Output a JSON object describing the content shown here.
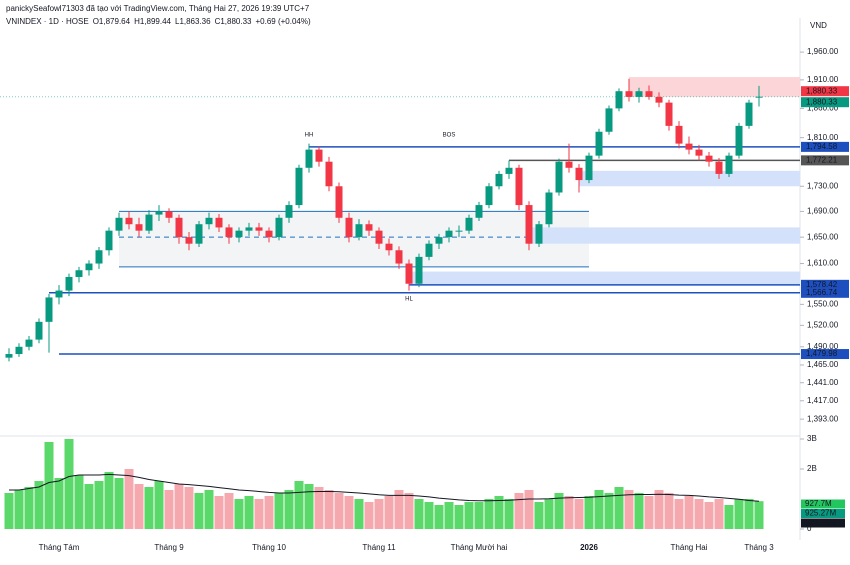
{
  "header": {
    "credit": "panickySeafowl71303 đã tạo với TradingView.com, Tháng Hai 27, 2026 19:39 UTC+7"
  },
  "chart_data": {
    "type": "candlestick",
    "currency": "VND",
    "legend": {
      "symbol": "VNINDEX · 1D · HOSE",
      "o": "O",
      "open": "1,879.64",
      "h": "H",
      "high": "1,899.44",
      "l": "L",
      "low": "1,863.36",
      "c": "C",
      "close": "1,880.33",
      "change": "+0.69 (+0.04%)"
    },
    "log_scale": true,
    "ylim": [
      1379,
      1997
    ],
    "yticks": [
      {
        "value": 1960,
        "label": "1,960.00"
      },
      {
        "value": 1910,
        "label": "1,910.00"
      },
      {
        "value": 1860,
        "label": "1,860.00"
      },
      {
        "value": 1810,
        "label": "1,810.00"
      },
      {
        "value": 1730,
        "label": "1,730.00"
      },
      {
        "value": 1690,
        "label": "1,690.00"
      },
      {
        "value": 1650,
        "label": "1,650.00"
      },
      {
        "value": 1610,
        "label": "1,610.00"
      },
      {
        "value": 1550,
        "label": "1,550.00"
      },
      {
        "value": 1520,
        "label": "1,520.00"
      },
      {
        "value": 1490,
        "label": "1,490.00"
      },
      {
        "value": 1465,
        "label": "1,465.00"
      },
      {
        "value": 1441,
        "label": "1,441.00"
      },
      {
        "value": 1417,
        "label": "1,417.00"
      },
      {
        "value": 1393,
        "label": "1,393.00"
      }
    ],
    "up_color": "#089981",
    "down_color": "#f23645",
    "candles": [
      [
        1475,
        1488,
        1470,
        1480
      ],
      [
        1480,
        1495,
        1476,
        1490
      ],
      [
        1490,
        1505,
        1485,
        1500
      ],
      [
        1500,
        1530,
        1495,
        1525
      ],
      [
        1525,
        1565,
        1482,
        1560
      ],
      [
        1560,
        1578,
        1550,
        1570
      ],
      [
        1570,
        1595,
        1562,
        1590
      ],
      [
        1590,
        1605,
        1582,
        1600
      ],
      [
        1600,
        1615,
        1592,
        1610
      ],
      [
        1610,
        1635,
        1602,
        1630
      ],
      [
        1630,
        1665,
        1622,
        1660
      ],
      [
        1660,
        1688,
        1652,
        1680
      ],
      [
        1680,
        1690,
        1662,
        1670
      ],
      [
        1670,
        1680,
        1650,
        1660
      ],
      [
        1660,
        1692,
        1655,
        1685
      ],
      [
        1685,
        1700,
        1675,
        1690
      ],
      [
        1690,
        1695,
        1672,
        1680
      ],
      [
        1680,
        1685,
        1640,
        1650
      ],
      [
        1650,
        1658,
        1630,
        1640
      ],
      [
        1640,
        1675,
        1635,
        1670
      ],
      [
        1670,
        1688,
        1662,
        1680
      ],
      [
        1680,
        1686,
        1658,
        1665
      ],
      [
        1665,
        1670,
        1640,
        1650
      ],
      [
        1650,
        1665,
        1642,
        1660
      ],
      [
        1660,
        1672,
        1652,
        1665
      ],
      [
        1665,
        1672,
        1652,
        1660
      ],
      [
        1660,
        1665,
        1642,
        1650
      ],
      [
        1650,
        1685,
        1645,
        1680
      ],
      [
        1680,
        1706,
        1672,
        1700
      ],
      [
        1700,
        1765,
        1695,
        1760
      ],
      [
        1760,
        1800,
        1752,
        1790
      ],
      [
        1790,
        1795,
        1762,
        1770
      ],
      [
        1770,
        1778,
        1722,
        1730
      ],
      [
        1730,
        1736,
        1672,
        1680
      ],
      [
        1680,
        1688,
        1642,
        1650
      ],
      [
        1650,
        1678,
        1645,
        1670
      ],
      [
        1670,
        1676,
        1652,
        1660
      ],
      [
        1660,
        1665,
        1632,
        1640
      ],
      [
        1640,
        1648,
        1622,
        1630
      ],
      [
        1630,
        1636,
        1602,
        1610
      ],
      [
        1610,
        1616,
        1570,
        1580
      ],
      [
        1580,
        1625,
        1575,
        1620
      ],
      [
        1620,
        1645,
        1615,
        1640
      ],
      [
        1640,
        1655,
        1632,
        1650
      ],
      [
        1650,
        1665,
        1642,
        1660
      ],
      [
        1660,
        1668,
        1650,
        1660
      ],
      [
        1660,
        1685,
        1655,
        1680
      ],
      [
        1680,
        1705,
        1675,
        1700
      ],
      [
        1700,
        1735,
        1695,
        1730
      ],
      [
        1730,
        1755,
        1725,
        1750
      ],
      [
        1750,
        1772,
        1742,
        1760
      ],
      [
        1760,
        1765,
        1692,
        1700
      ],
      [
        1700,
        1706,
        1630,
        1640
      ],
      [
        1640,
        1675,
        1635,
        1670
      ],
      [
        1670,
        1725,
        1665,
        1720
      ],
      [
        1720,
        1775,
        1715,
        1770
      ],
      [
        1770,
        1800,
        1752,
        1760
      ],
      [
        1760,
        1766,
        1720,
        1740
      ],
      [
        1740,
        1785,
        1735,
        1780
      ],
      [
        1780,
        1825,
        1775,
        1820
      ],
      [
        1820,
        1865,
        1815,
        1860
      ],
      [
        1860,
        1895,
        1855,
        1890
      ],
      [
        1890,
        1912,
        1872,
        1880
      ],
      [
        1880,
        1896,
        1870,
        1890
      ],
      [
        1890,
        1900,
        1875,
        1880
      ],
      [
        1880,
        1888,
        1862,
        1870
      ],
      [
        1870,
        1875,
        1822,
        1830
      ],
      [
        1830,
        1838,
        1792,
        1800
      ],
      [
        1800,
        1812,
        1782,
        1790
      ],
      [
        1790,
        1798,
        1772,
        1780
      ],
      [
        1780,
        1786,
        1762,
        1770
      ],
      [
        1770,
        1776,
        1742,
        1750
      ],
      [
        1750,
        1785,
        1745,
        1780
      ],
      [
        1780,
        1835,
        1775,
        1830
      ],
      [
        1830,
        1875,
        1825,
        1870
      ],
      [
        1879.64,
        1899.44,
        1863.36,
        1880.33
      ]
    ],
    "volume_ylim": [
      0,
      3000000000.0
    ],
    "volume_ticks": [
      {
        "value": 3000000000.0,
        "label": "3B"
      },
      {
        "value": 2000000000.0,
        "label": "2B"
      },
      {
        "value": 0,
        "label": "0"
      }
    ],
    "volumes": [
      1200000000.0,
      1300000000.0,
      1400000000.0,
      1600000000.0,
      2900000000.0,
      1700000000.0,
      3000000000.0,
      1800000000.0,
      1500000000.0,
      1600000000.0,
      1900000000.0,
      1700000000.0,
      2000000000.0,
      1500000000.0,
      1400000000.0,
      1600000000.0,
      1300000000.0,
      1500000000.0,
      1400000000.0,
      1200000000.0,
      1300000000.0,
      1100000000.0,
      1200000000.0,
      1000000000.0,
      1100000000.0,
      1000000000.0,
      1100000000.0,
      1200000000.0,
      1300000000.0,
      1600000000.0,
      1500000000.0,
      1400000000.0,
      1300000000.0,
      1200000000.0,
      1100000000.0,
      1000000000.0,
      900000000.0,
      1000000000.0,
      1100000000.0,
      1300000000.0,
      1200000000.0,
      1000000000.0,
      900000000.0,
      800000000.0,
      900000000.0,
      800000000.0,
      900000000.0,
      900000000.0,
      1000000000.0,
      1100000000.0,
      1000000000.0,
      1200000000.0,
      1300000000.0,
      900000000.0,
      1000000000.0,
      1200000000.0,
      1100000000.0,
      1000000000.0,
      1100000000.0,
      1300000000.0,
      1200000000.0,
      1400000000.0,
      1300000000.0,
      1200000000.0,
      1100000000.0,
      1300000000.0,
      1200000000.0,
      1000000000.0,
      1100000000.0,
      1000000000.0,
      900000000.0,
      1000000000.0,
      800000000.0,
      1000000000.0,
      1000000000.0,
      927700000
    ],
    "volume_ma": [
      1300000000.0,
      1300000000.0,
      1350000000.0,
      1400000000.0,
      1550000000.0,
      1600000000.0,
      1750000000.0,
      1800000000.0,
      1800000000.0,
      1800000000.0,
      1820000000.0,
      1800000000.0,
      1780000000.0,
      1720000000.0,
      1650000000.0,
      1600000000.0,
      1550000000.0,
      1500000000.0,
      1480000000.0,
      1450000000.0,
      1420000000.0,
      1380000000.0,
      1340000000.0,
      1300000000.0,
      1280000000.0,
      1250000000.0,
      1220000000.0,
      1200000000.0,
      1200000000.0,
      1220000000.0,
      1240000000.0,
      1250000000.0,
      1250000000.0,
      1240000000.0,
      1220000000.0,
      1200000000.0,
      1170000000.0,
      1140000000.0,
      1120000000.0,
      1120000000.0,
      1120000000.0,
      1100000000.0,
      1070000000.0,
      1030000000.0,
      1000000000.0,
      970000000.0,
      950000000.0,
      940000000.0,
      940000000.0,
      950000000.0,
      960000000.0,
      980000000.0,
      1000000000.0,
      1000000000.0,
      1010000000.0,
      1030000000.0,
      1040000000.0,
      1050000000.0,
      1060000000.0,
      1080000000.0,
      1100000000.0,
      1120000000.0,
      1140000000.0,
      1150000000.0,
      1150000000.0,
      1160000000.0,
      1150000000.0,
      1130000000.0,
      1120000000.0,
      1100000000.0,
      1070000000.0,
      1050000000.0,
      1020000000.0,
      990000000.0,
      950000000.0,
      925270000
    ],
    "volume_labels": [
      {
        "value": 927700000,
        "label": "927.7M",
        "color": "#22c55e"
      },
      {
        "value": 925270000,
        "label": "925.27M",
        "color": "#089981"
      },
      {
        "value": 903780000,
        "label": "903.78M",
        "color": "#131722"
      }
    ],
    "zones": [
      {
        "lo": 1880,
        "hi": 1915,
        "from": 62,
        "color": "#fbd5d8"
      },
      {
        "lo": 1730,
        "hi": 1755,
        "from": 57,
        "color": "#d3e1fb"
      },
      {
        "lo": 1640,
        "hi": 1665,
        "from": 52,
        "color": "#d3e1fb"
      },
      {
        "lo": 1578.42,
        "hi": 1598,
        "from": 40,
        "color": "#d3e1fb"
      }
    ],
    "range": {
      "lo": 1605,
      "hi": 1690,
      "mid": 1650,
      "from": 11,
      "to": 58
    },
    "levels": [
      {
        "value": 1794.58,
        "label": "1,794.58",
        "from": 30,
        "color": "#1e4fbf"
      },
      {
        "value": 1772.21,
        "label": "1,772.21",
        "from": 50,
        "color": "#555555"
      },
      {
        "value": 1578.42,
        "label": "1,578.42",
        "from": 40,
        "color": "#1e4fbf"
      },
      {
        "value": 1566.74,
        "label": "1,566.74",
        "from": 4,
        "color": "#1e4fbf"
      },
      {
        "value": 1479.98,
        "label": "1,479.98",
        "from": 5,
        "color": "#1e4fbf"
      }
    ],
    "price_labels": [
      {
        "value": 1880.33,
        "label": "1,880.33",
        "color": "#f23645"
      },
      {
        "value": 1880.33,
        "label": "1,880.33",
        "color": "#089981"
      }
    ],
    "annotations": [
      {
        "text": "HH",
        "index": 30,
        "value": 1815,
        "color": "#f23645"
      },
      {
        "text": "BOS",
        "index": 44,
        "value": 1815,
        "color": "#089981"
      },
      {
        "text": "HL",
        "index": 40,
        "value": 1558,
        "color": "#1e4fbf"
      }
    ],
    "xlabels": [
      {
        "label": "Tháng Tám",
        "index": 5
      },
      {
        "label": "Tháng 9",
        "index": 16
      },
      {
        "label": "Tháng 10",
        "index": 26
      },
      {
        "label": "Tháng 11",
        "index": 37
      },
      {
        "label": "Tháng Mười hai",
        "index": 47
      },
      {
        "label": "2026",
        "index": 58
      },
      {
        "label": "Tháng Hai",
        "index": 68
      },
      {
        "label": "Tháng 3",
        "index": 75
      }
    ]
  }
}
